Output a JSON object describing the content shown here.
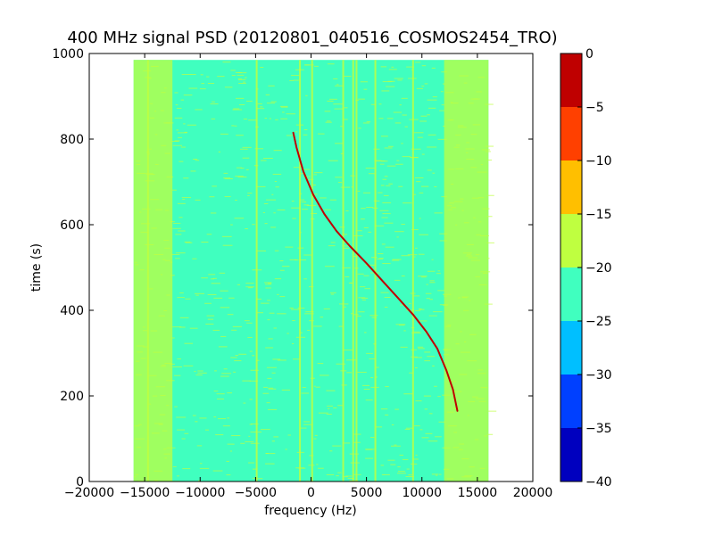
{
  "chart_data": {
    "type": "heatmap",
    "title": "400 MHz signal PSD (20120801_040516_COSMOS2454_TRO)",
    "xlabel": "frequency (Hz)",
    "ylabel": "time (s)",
    "xlim": [
      -20000,
      20000
    ],
    "ylim": [
      0,
      1000
    ],
    "x_ticks": [
      -20000,
      -15000,
      -10000,
      -5000,
      0,
      5000,
      10000,
      15000,
      20000
    ],
    "x_tick_labels": [
      "−20000",
      "−15000",
      "−10000",
      "−5000",
      "0",
      "5000",
      "10000",
      "15000",
      "20000"
    ],
    "y_ticks": [
      0,
      200,
      400,
      600,
      800,
      1000
    ],
    "y_tick_labels": [
      "0",
      "200",
      "400",
      "600",
      "800",
      "1000"
    ],
    "data_extent": {
      "x": [
        -16000,
        16000
      ],
      "y": [
        0,
        985
      ]
    },
    "grid": false,
    "colorbar": {
      "levels": [
        -40,
        -35,
        -30,
        -25,
        -20,
        -15,
        -10,
        -5,
        0
      ],
      "tick_labels": [
        "−40",
        "−35",
        "−30",
        "−25",
        "−20",
        "−15",
        "−10",
        "−5",
        "0"
      ],
      "colors": [
        "#0000bf",
        "#0040ff",
        "#00bfff",
        "#40ffbf",
        "#bfff40",
        "#ffbf00",
        "#ff4000",
        "#bf0000"
      ]
    },
    "background_level_dB": -22,
    "edge_bands": [
      {
        "x": [
          -16000,
          -12500
        ],
        "level_dB": -18
      },
      {
        "x": [
          12000,
          16000
        ],
        "level_dB": -18
      }
    ],
    "vertical_lines": [
      {
        "x": -14700,
        "level_dB": -18
      },
      {
        "x": -4900,
        "level_dB": -18
      },
      {
        "x": -1000,
        "level_dB": -18
      },
      {
        "x": 100,
        "level_dB": -18
      },
      {
        "x": 2900,
        "level_dB": -18
      },
      {
        "x": 3800,
        "level_dB": -18
      },
      {
        "x": 4100,
        "level_dB": -18
      },
      {
        "x": 5800,
        "level_dB": -18
      },
      {
        "x": 9200,
        "level_dB": -18
      }
    ],
    "doppler_trace": {
      "level_dB": -5,
      "x": [
        -1600,
        -1300,
        -700,
        200,
        1200,
        2300,
        3500,
        5000,
        6400,
        7800,
        9200,
        10400,
        11400,
        12200,
        12800,
        13200
      ],
      "y": [
        815,
        780,
        725,
        670,
        625,
        585,
        550,
        510,
        470,
        430,
        390,
        350,
        310,
        260,
        215,
        165
      ]
    }
  }
}
